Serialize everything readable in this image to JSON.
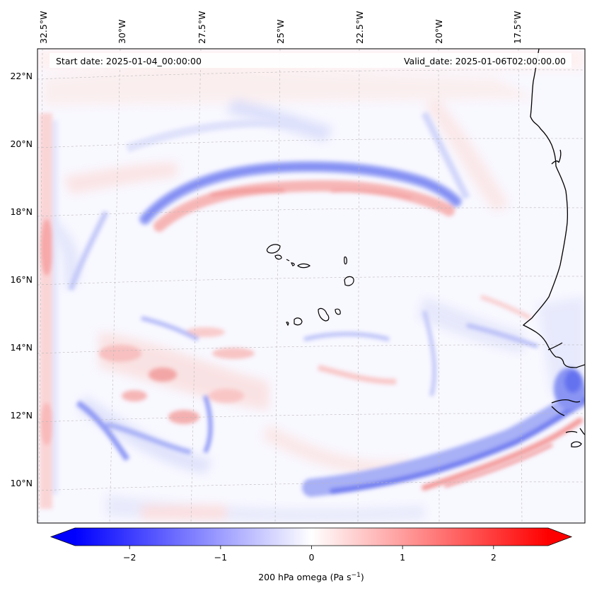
{
  "map": {
    "header": {
      "start_date": "Start date: 2025-01-04_00:00:00",
      "valid_date": "Valid_date: 2025-01-06T02:00:00.00"
    },
    "lon_labels": [
      "32.5°W",
      "30°W",
      "27.5°W",
      "25°W",
      "22.5°W",
      "20°W",
      "17.5°W"
    ],
    "lat_labels": [
      "22°N",
      "20°N",
      "18°N",
      "16°N",
      "14°N",
      "12°N",
      "10°N"
    ],
    "islands": [
      "Santo Antão",
      "São Vicente",
      "Santa Luzia",
      "São Nicolau",
      "Sal",
      "Boa Vista",
      "Maio",
      "Santiago",
      "Fogo",
      "Brava"
    ]
  },
  "colorbar": {
    "ticks": [
      "−2",
      "−1",
      "0",
      "1",
      "2"
    ],
    "tick_values": [
      -2,
      -1,
      0,
      1,
      2
    ],
    "range": [
      -2.6,
      2.6
    ],
    "label_main": "200 hPa omega (Pa s",
    "label_sup": "−1",
    "label_close": ")",
    "colors": {
      "negative": "#0000ff",
      "zero": "#ffffff",
      "positive": "#ff0000"
    }
  },
  "chart_data": {
    "type": "heatmap",
    "variable": "200 hPa omega (Pa s⁻¹)",
    "x_axis_ticks": [
      "32.5°W",
      "30°W",
      "27.5°W",
      "25°W",
      "22.5°W",
      "20°W",
      "17.5°W"
    ],
    "y_axis_ticks": [
      "22°N",
      "20°N",
      "18°N",
      "16°N",
      "14°N",
      "12°N",
      "10°N"
    ],
    "colorbar_range": [
      -2.6,
      2.6
    ],
    "colorbar_ticks": [
      -2,
      -1,
      0,
      1,
      2
    ],
    "colormap": "bwr",
    "grid": true,
    "features": [
      {
        "name": "ascending band (negative)",
        "lat_range": [
          18,
          19.2
        ],
        "lon_range": [
          -29,
          -20
        ],
        "value": -0.8
      },
      {
        "name": "subsidence band (positive)",
        "lat_range": [
          17.8,
          18.4
        ],
        "lon_range": [
          -28,
          -20.5
        ],
        "value": 0.6
      },
      {
        "name": "southern ascending band (negative)",
        "lat_range": [
          9.3,
          12.3
        ],
        "lon_range": [
          -25,
          -15.5
        ],
        "value": -1.0
      },
      {
        "name": "southern subsidence streak (positive)",
        "lat_range": [
          10.8,
          12.3
        ],
        "lon_range": [
          -19,
          -15.5
        ],
        "value": 0.8
      },
      {
        "name": "western edge positive strip",
        "lat_range": [
          9.5,
          22
        ],
        "lon_range": [
          -33,
          -32.5
        ],
        "value": 0.7
      }
    ]
  }
}
